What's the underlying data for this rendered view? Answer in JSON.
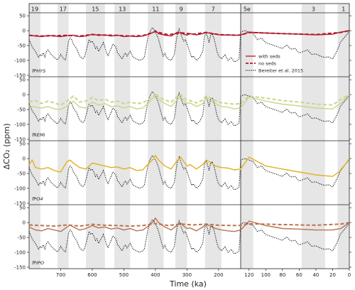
{
  "chart_data": {
    "type": "line",
    "xlabel": "Time (ka)",
    "ylabel": "ΔCO₂ (ppm)",
    "ylim": [
      -155,
      60
    ],
    "y_ticks": [
      -150,
      -100,
      -50,
      0,
      50
    ],
    "y_tick_labels": [
      "-150",
      "-100",
      "-50",
      "0",
      "50"
    ],
    "grid": false,
    "legend_position": "top-right of first panel, right section",
    "legend": [
      {
        "label": "with seds",
        "style": "solid",
        "color": "#b2182b"
      },
      {
        "label": "no seds",
        "style": "dashed",
        "color": "#b2182b"
      },
      {
        "label": "Bereiter et al. 2015",
        "style": "dotted",
        "color": "#000000"
      }
    ],
    "sections": [
      {
        "name": "left",
        "xlim": [
          800,
          130
        ],
        "x_ticks": [
          700,
          600,
          500,
          400,
          300,
          200
        ],
        "x_tick_labels": [
          "700",
          "600",
          "500",
          "400",
          "300",
          "200"
        ]
      },
      {
        "name": "right",
        "xlim": [
          130,
          0
        ],
        "x_ticks": [
          120,
          100,
          80,
          60,
          40,
          20,
          0
        ],
        "x_tick_labels": [
          "120",
          "100",
          "80",
          "60",
          "40",
          "20",
          "0"
        ]
      }
    ],
    "mis_bands": [
      {
        "label": "19",
        "from": 800,
        "to": 764
      },
      {
        "label": "17",
        "from": 710,
        "to": 675
      },
      {
        "label": "15",
        "from": 620,
        "to": 560
      },
      {
        "label": "13",
        "from": 530,
        "to": 480
      },
      {
        "label": "11",
        "from": 424,
        "to": 374
      },
      {
        "label": "9",
        "from": 337,
        "to": 300
      },
      {
        "label": "7",
        "from": 243,
        "to": 191
      },
      {
        "label": "5e",
        "from": 130,
        "to": 115
      },
      {
        "label": "3",
        "from": 57,
        "to": 29
      },
      {
        "label": "1",
        "from": 14,
        "to": 0
      }
    ],
    "panels": [
      {
        "label": "fPHYS",
        "color": "#b2182b"
      },
      {
        "label": "fREMI",
        "color": "#c5d88a"
      },
      {
        "label": "fPO4",
        "color": "#e0b020"
      },
      {
        "label": "fPIPO",
        "color": "#b9734e"
      }
    ],
    "bereiter": {
      "x": [
        800,
        790,
        780,
        770,
        765,
        760,
        755,
        750,
        745,
        740,
        735,
        730,
        725,
        720,
        715,
        710,
        705,
        700,
        690,
        685,
        680,
        675,
        670,
        665,
        660,
        650,
        640,
        630,
        625,
        620,
        615,
        610,
        605,
        600,
        595,
        590,
        585,
        580,
        575,
        570,
        565,
        560,
        555,
        550,
        545,
        540,
        535,
        530,
        525,
        520,
        515,
        510,
        505,
        500,
        495,
        490,
        480,
        470,
        460,
        450,
        440,
        435,
        430,
        425,
        420,
        415,
        410,
        405,
        400,
        395,
        390,
        385,
        380,
        375,
        370,
        365,
        360,
        350,
        340,
        335,
        330,
        325,
        320,
        315,
        310,
        305,
        300,
        295,
        290,
        285,
        280,
        270,
        260,
        250,
        245,
        240,
        235,
        230,
        225,
        220,
        215,
        210,
        205,
        200,
        195,
        190,
        180,
        170,
        160,
        150,
        140,
        135,
        130,
        125,
        120,
        115,
        110,
        105,
        100,
        95,
        90,
        85,
        80,
        75,
        70,
        65,
        60,
        55,
        50,
        45,
        40,
        35,
        30,
        25,
        20,
        18,
        15,
        12,
        11,
        8,
        5,
        2,
        0
      ],
      "y": [
        -30,
        -55,
        -70,
        -90,
        -80,
        -85,
        -75,
        -88,
        -70,
        -65,
        -72,
        -80,
        -85,
        -90,
        -95,
        -98,
        -90,
        -80,
        -95,
        -98,
        -70,
        -35,
        -25,
        -30,
        -45,
        -60,
        -85,
        -95,
        -90,
        -70,
        -50,
        -30,
        -40,
        -35,
        -45,
        -60,
        -55,
        -70,
        -60,
        -50,
        -40,
        -55,
        -75,
        -85,
        -70,
        -60,
        -45,
        -50,
        -55,
        -75,
        -80,
        -90,
        -95,
        -82,
        -75,
        -85,
        -70,
        -90,
        -95,
        -100,
        -95,
        -90,
        -60,
        -30,
        -10,
        0,
        10,
        5,
        -5,
        -15,
        -30,
        -50,
        -70,
        -85,
        -75,
        -90,
        -95,
        -100,
        -80,
        -40,
        -10,
        5,
        -10,
        -25,
        -35,
        -30,
        -45,
        -60,
        -75,
        -90,
        -85,
        -100,
        -90,
        -70,
        -20,
        -5,
        -20,
        -40,
        -15,
        -10,
        -25,
        -45,
        -70,
        -85,
        -90,
        -95,
        -80,
        -100,
        -90,
        -105,
        -100,
        -95,
        -5,
        0,
        -5,
        -10,
        -30,
        -25,
        -40,
        -45,
        -50,
        -55,
        -60,
        -48,
        -62,
        -60,
        -75,
        -70,
        -65,
        -80,
        -78,
        -85,
        -90,
        -88,
        -95,
        -85,
        -70,
        -50,
        -40,
        -30,
        -20,
        -10,
        0
      ]
    },
    "series": [
      {
        "panel": "fPHYS",
        "name": "with seds",
        "x": [
          800,
          780,
          760,
          740,
          720,
          700,
          680,
          660,
          640,
          620,
          600,
          580,
          560,
          540,
          520,
          500,
          480,
          460,
          440,
          420,
          405,
          400,
          390,
          370,
          350,
          330,
          320,
          310,
          300,
          290,
          270,
          250,
          240,
          230,
          210,
          190,
          170,
          150,
          130,
          120,
          100,
          80,
          60,
          40,
          20,
          10,
          0
        ],
        "y": [
          -15,
          -18,
          -20,
          -16,
          -18,
          -20,
          -17,
          -15,
          -20,
          -18,
          -12,
          -16,
          -14,
          -18,
          -15,
          -20,
          -18,
          -20,
          -18,
          -12,
          -5,
          0,
          -10,
          -15,
          -18,
          -5,
          -8,
          -12,
          -15,
          -10,
          -14,
          -10,
          -5,
          -8,
          -12,
          -15,
          -14,
          -16,
          -14,
          -5,
          -8,
          -10,
          -12,
          -14,
          -12,
          -5,
          0
        ]
      },
      {
        "panel": "fPHYS",
        "name": "no seds",
        "x": [
          800,
          760,
          720,
          680,
          640,
          600,
          560,
          520,
          480,
          440,
          400,
          360,
          320,
          280,
          240,
          200,
          160,
          130,
          120,
          80,
          40,
          10,
          0
        ],
        "y": [
          -16,
          -18,
          -17,
          -16,
          -18,
          -13,
          -15,
          -16,
          -18,
          -17,
          -3,
          -14,
          -7,
          -12,
          -6,
          -13,
          -15,
          -15,
          -6,
          -10,
          -13,
          -6,
          0
        ]
      },
      {
        "panel": "fREMI",
        "name": "with seds",
        "x": [
          800,
          780,
          760,
          740,
          720,
          700,
          680,
          660,
          640,
          620,
          600,
          580,
          560,
          540,
          520,
          500,
          480,
          460,
          440,
          420,
          405,
          400,
          390,
          370,
          350,
          330,
          320,
          310,
          300,
          290,
          270,
          250,
          240,
          230,
          210,
          190,
          170,
          150,
          130,
          120,
          100,
          80,
          60,
          40,
          20,
          10,
          0
        ],
        "y": [
          -38,
          -42,
          -45,
          -40,
          -48,
          -50,
          -38,
          -22,
          -42,
          -45,
          -25,
          -35,
          -30,
          -40,
          -38,
          -45,
          -40,
          -48,
          -45,
          -25,
          -10,
          -2,
          -15,
          -30,
          -40,
          -15,
          -8,
          -20,
          -30,
          -28,
          -40,
          -30,
          -10,
          -18,
          -30,
          -40,
          -42,
          -48,
          -45,
          -8,
          -22,
          -32,
          -38,
          -45,
          -48,
          -28,
          0
        ]
      },
      {
        "panel": "fREMI",
        "name": "no seds",
        "x": [
          800,
          780,
          760,
          740,
          720,
          700,
          680,
          660,
          640,
          620,
          600,
          580,
          560,
          540,
          520,
          500,
          480,
          460,
          440,
          420,
          405,
          400,
          390,
          370,
          350,
          330,
          320,
          310,
          300,
          290,
          270,
          250,
          240,
          230,
          210,
          190,
          170,
          150,
          130,
          120,
          100,
          80,
          60,
          40,
          20,
          10,
          0
        ],
        "y": [
          -25,
          -20,
          -30,
          -22,
          -28,
          -35,
          -22,
          -5,
          -25,
          -22,
          -10,
          -20,
          -15,
          -25,
          -22,
          -30,
          -25,
          -30,
          -28,
          -15,
          -5,
          5,
          -8,
          -18,
          -25,
          -5,
          0,
          -12,
          -18,
          -20,
          -28,
          -18,
          -5,
          -10,
          -20,
          -28,
          -30,
          -32,
          -30,
          -5,
          -12,
          -20,
          -25,
          -32,
          -35,
          -15,
          0
        ]
      },
      {
        "panel": "fPO4",
        "name": "with seds",
        "x": [
          800,
          790,
          780,
          760,
          740,
          720,
          700,
          680,
          670,
          660,
          640,
          620,
          600,
          580,
          560,
          540,
          520,
          500,
          480,
          460,
          440,
          420,
          405,
          400,
          390,
          370,
          350,
          330,
          320,
          310,
          300,
          290,
          270,
          250,
          240,
          230,
          210,
          190,
          170,
          150,
          130,
          120,
          100,
          80,
          60,
          40,
          20,
          10,
          0
        ],
        "y": [
          -20,
          -5,
          -30,
          -35,
          -30,
          -40,
          -45,
          -10,
          -5,
          -15,
          -30,
          -35,
          -15,
          -20,
          -25,
          -30,
          -28,
          -35,
          -30,
          -40,
          -38,
          -15,
          0,
          10,
          -5,
          -25,
          -35,
          -5,
          5,
          -10,
          -25,
          -20,
          -35,
          -20,
          -5,
          -10,
          -25,
          -30,
          -32,
          -38,
          -35,
          5,
          -25,
          -35,
          -45,
          -55,
          -60,
          -40,
          0
        ]
      },
      {
        "panel": "fPIPO",
        "name": "with seds",
        "x": [
          800,
          780,
          760,
          740,
          720,
          700,
          680,
          670,
          660,
          640,
          620,
          600,
          580,
          560,
          540,
          520,
          500,
          480,
          460,
          440,
          420,
          405,
          400,
          390,
          370,
          350,
          330,
          320,
          310,
          300,
          290,
          270,
          250,
          240,
          230,
          210,
          190,
          170,
          150,
          130,
          120,
          100,
          80,
          60,
          40,
          20,
          10,
          0
        ],
        "y": [
          -15,
          -25,
          -28,
          -20,
          -25,
          -30,
          -15,
          -8,
          -15,
          -25,
          -20,
          -10,
          -18,
          -15,
          -22,
          -18,
          -25,
          -20,
          -28,
          -25,
          -10,
          5,
          15,
          0,
          -15,
          -25,
          -8,
          -2,
          -12,
          -20,
          -18,
          -28,
          -15,
          -5,
          -10,
          -20,
          -25,
          -28,
          -30,
          -25,
          5,
          -10,
          -20,
          -22,
          -25,
          -25,
          -20,
          0
        ]
      },
      {
        "panel": "fPIPO",
        "name": "no seds",
        "x": [
          800,
          760,
          720,
          680,
          640,
          600,
          560,
          520,
          480,
          440,
          400,
          360,
          320,
          280,
          240,
          200,
          160,
          130,
          120,
          80,
          40,
          10,
          0
        ],
        "y": [
          -8,
          -10,
          -12,
          -8,
          -12,
          -6,
          -9,
          -10,
          -12,
          -10,
          -3,
          -10,
          -5,
          -8,
          -5,
          -9,
          -10,
          -10,
          -4,
          -7,
          -9,
          -5,
          0
        ]
      }
    ]
  }
}
